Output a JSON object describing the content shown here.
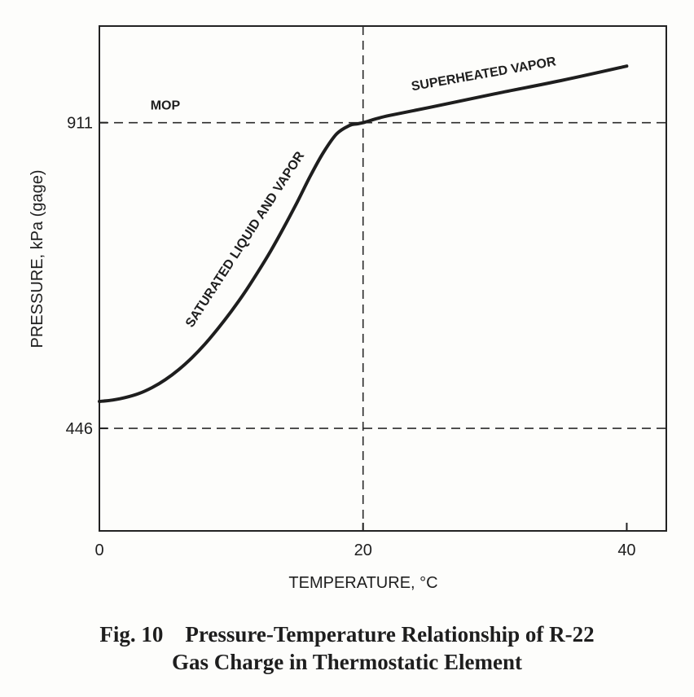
{
  "chart_data": {
    "type": "line",
    "xlabel": "TEMPERATURE,  °C",
    "ylabel": "PRESSURE,  kPa (gage)",
    "xlim": [
      0,
      43
    ],
    "ylim": [
      290,
      1058
    ],
    "x_ticks": [
      {
        "value": 0,
        "label": "0"
      },
      {
        "value": 20,
        "label": "20"
      },
      {
        "value": 40,
        "label": "40"
      }
    ],
    "y_ticks": [
      {
        "value": 446,
        "label": "446"
      },
      {
        "value": 911,
        "label": "911"
      }
    ],
    "reference_lines": {
      "horizontal": [
        446,
        911
      ],
      "vertical": [
        20
      ],
      "style": "dashed"
    },
    "grid": false,
    "series": [
      {
        "name": "",
        "x": [
          0,
          1,
          2,
          3,
          4,
          5,
          6,
          7,
          8,
          9,
          10,
          11,
          12,
          13,
          14,
          15,
          16,
          17,
          18,
          19,
          19.5,
          20,
          20.5,
          21,
          22,
          25,
          30,
          35,
          40
        ],
        "y": [
          487,
          489,
          493,
          499,
          508,
          520,
          535,
          553,
          574,
          598,
          624,
          652,
          683,
          716,
          752,
          790,
          830,
          866,
          894,
          907,
          909,
          911,
          914,
          917,
          922,
          934,
          955,
          975,
          997
        ]
      }
    ],
    "annotations": [
      {
        "text": "MOP",
        "x": 5,
        "y": 931
      },
      {
        "text": "SATURATED LIQUID AND VAPOR",
        "x": 11.3,
        "y": 730,
        "angle_deg": -57
      },
      {
        "text": "SUPERHEATED VAPOR",
        "x": 29.2,
        "y": 979,
        "angle_deg": -10
      }
    ]
  },
  "caption": {
    "line1": "Fig. 10    Pressure-Temperature Relationship of R-22",
    "line2": "Gas Charge in Thermostatic Element"
  }
}
